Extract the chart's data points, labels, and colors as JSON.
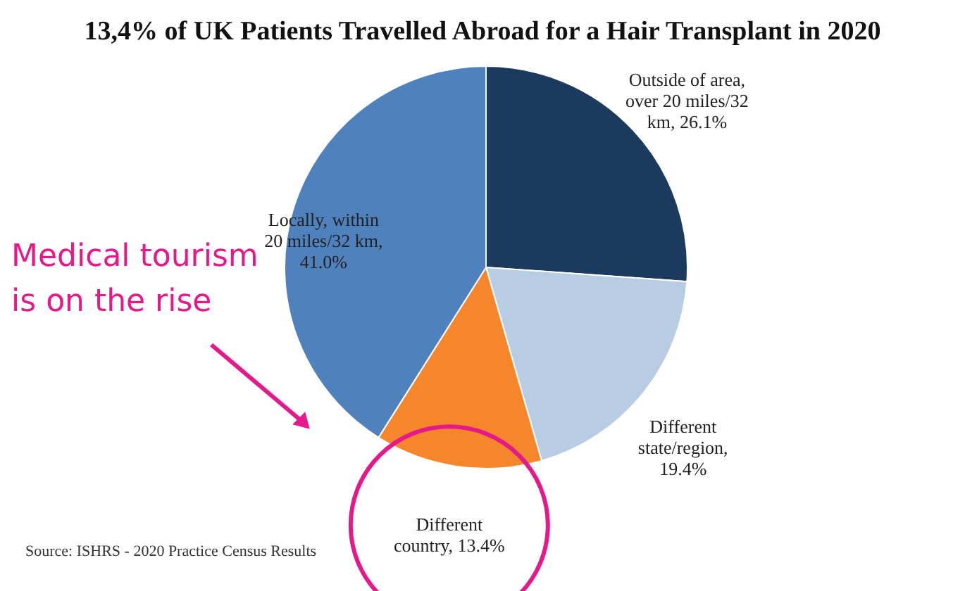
{
  "chart_data": {
    "type": "pie",
    "title": "13,4% of UK Patients Travelled Abroad for a Hair Transplant in 2020",
    "categories": [
      "Outside of area, over 20 miles/32 km, 26.1%",
      "Different state/region, 19.4%",
      "Different country, 13.4%",
      "Locally, within 20 miles/32 km, 41.0%"
    ],
    "values": [
      26.1,
      19.4,
      13.4,
      41.0
    ],
    "colors": [
      "#1c3a5e",
      "#b8cce4",
      "#f5862c",
      "#4f81bd"
    ],
    "annotations": [
      "Medical tourism is on the rise",
      "Source: ISHRS - 2020 Practice Census Results"
    ]
  }
}
